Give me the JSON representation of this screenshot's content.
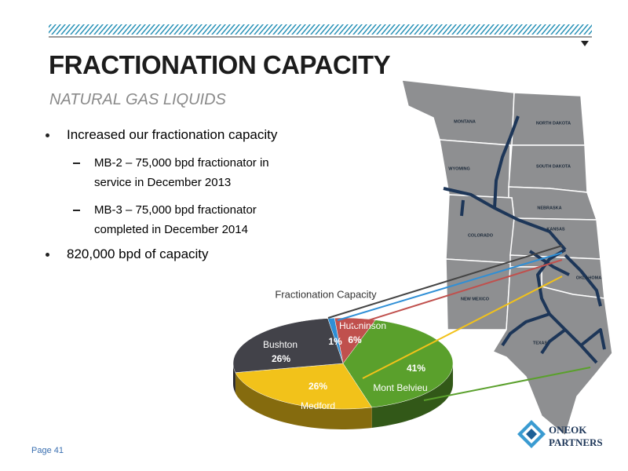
{
  "header": {
    "title": "FRACTIONATION CAPACITY",
    "subtitle": "NATURAL GAS LIQUIDS"
  },
  "bullets": [
    {
      "text": "Increased our fractionation capacity",
      "subitems": [
        "MB-2 – 75,000 bpd fractionator in service in December 2013",
        "MB-3 – 75,000 bpd fractionator completed in December 2014"
      ]
    },
    {
      "text": "820,000 bpd of capacity"
    }
  ],
  "chart_data": {
    "type": "pie3d",
    "title": "Fractionation Capacity",
    "categories": [
      null,
      "Hutchinson",
      "Mont Belvieu",
      "Medford",
      "Bushton"
    ],
    "values": [
      1,
      6,
      41,
      26,
      26
    ],
    "value_labels": [
      "1%",
      "6%",
      "41%",
      "26%",
      "26%"
    ],
    "colors": [
      "#2f8fd6",
      "#c0504d",
      "#5aa02c",
      "#f2c21a",
      "#424249"
    ]
  },
  "map": {
    "labels": [
      "MONTANA",
      "NORTH DAKOTA",
      "WYOMING",
      "SOUTH DAKOTA",
      "NEBRASKA",
      "KANSAS",
      "COLORADO",
      "OKLAHOMA",
      "NEW MEXICO",
      "TEXAS"
    ]
  },
  "footer": {
    "page": "Page 41",
    "logo": [
      "ONEOK",
      "PARTNERS"
    ]
  }
}
